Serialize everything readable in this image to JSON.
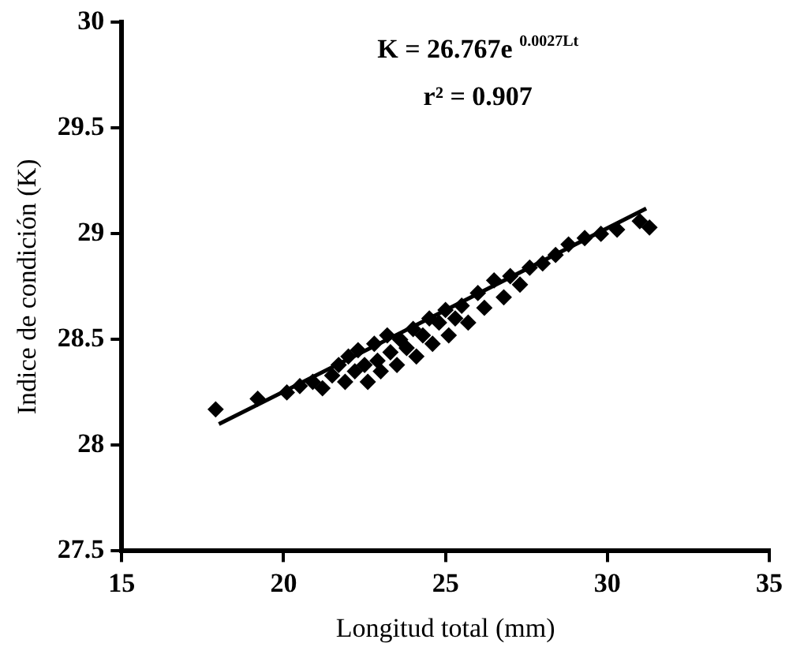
{
  "chart_data": {
    "type": "scatter",
    "xlabel": "Longitud total (mm)",
    "ylabel": "Indice de condición (K)",
    "xlim": [
      15,
      35
    ],
    "xticks": [
      15,
      20,
      25,
      30,
      35
    ],
    "ylim": [
      27.5,
      30
    ],
    "yticks": [
      27.5,
      28,
      28.5,
      29,
      29.5,
      30
    ],
    "grid": false,
    "legend": false,
    "annotations": [
      "K = 26.767e $^{0.0027Lt}$",
      "r² = 0.907"
    ],
    "series": [
      {
        "color": "#000000",
        "marker": "diamond",
        "x": [
          17.9,
          19.2,
          20.1,
          20.5,
          20.9,
          21.2,
          21.5,
          21.7,
          21.9,
          22.0,
          22.2,
          22.3,
          22.5,
          22.6,
          22.8,
          22.9,
          23.0,
          23.2,
          23.3,
          23.5,
          23.6,
          23.8,
          24.0,
          24.1,
          24.3,
          24.5,
          24.6,
          24.8,
          25.0,
          25.1,
          25.3,
          25.5,
          25.7,
          26.0,
          26.2,
          26.5,
          26.8,
          27.0,
          27.3,
          27.6,
          28.0,
          28.4,
          28.8,
          29.3,
          29.8,
          30.3,
          31.0,
          31.3
        ],
        "values": [
          28.17,
          28.22,
          28.25,
          28.28,
          28.3,
          28.27,
          28.33,
          28.38,
          28.3,
          28.42,
          28.35,
          28.45,
          28.38,
          28.3,
          28.48,
          28.4,
          28.35,
          28.52,
          28.44,
          28.38,
          28.5,
          28.46,
          28.55,
          28.42,
          28.52,
          28.6,
          28.48,
          28.58,
          28.64,
          28.52,
          28.6,
          28.66,
          28.58,
          28.72,
          28.65,
          28.78,
          28.7,
          28.8,
          28.76,
          28.84,
          28.86,
          28.9,
          28.95,
          28.98,
          29.0,
          29.02,
          29.06,
          29.03
        ]
      },
      {
        "type": "line",
        "color": "#000000",
        "marker": "none",
        "x": [
          18,
          24.5,
          31.2
        ],
        "values": [
          28.1,
          28.6,
          29.12
        ]
      }
    ]
  }
}
